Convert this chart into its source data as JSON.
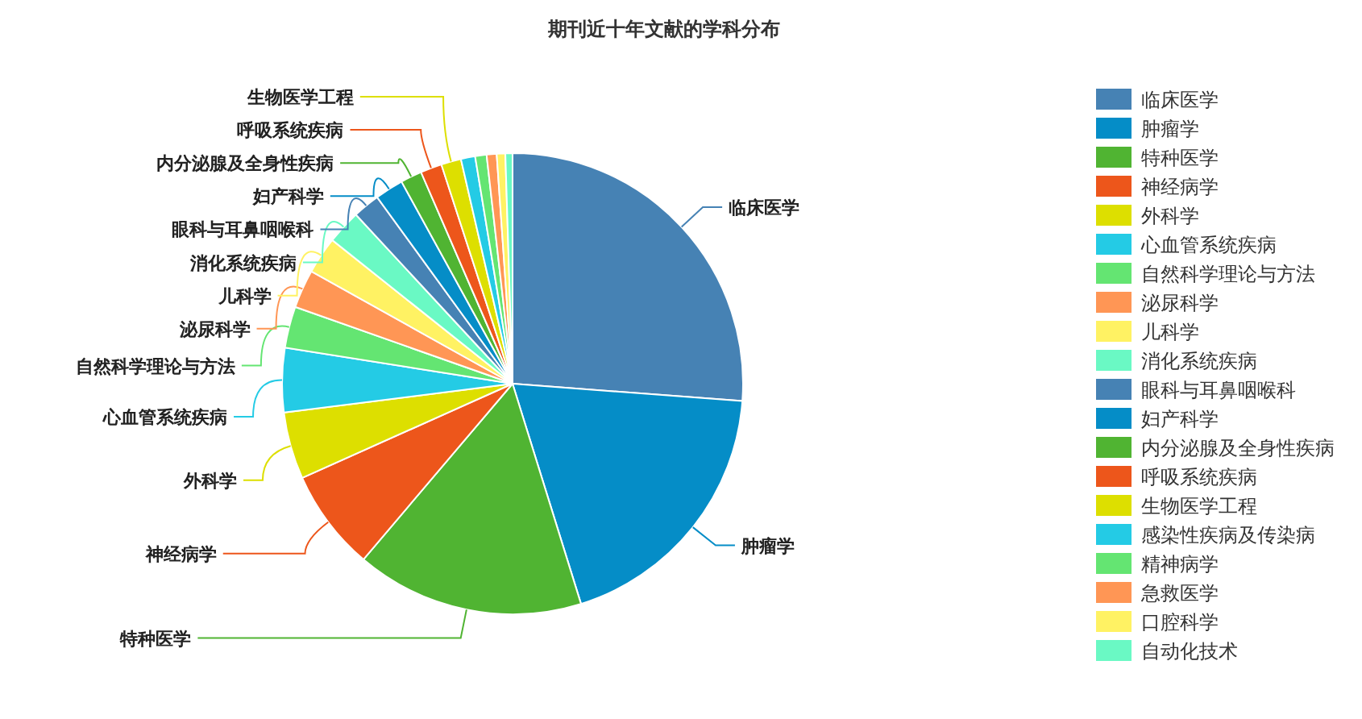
{
  "chart_data": {
    "type": "pie",
    "title": "期刊近十年文献的学科分布",
    "categories": [
      "临床医学",
      "肿瘤学",
      "特种医学",
      "神经病学",
      "外科学",
      "心血管系统疾病",
      "自然科学理论与方法",
      "泌尿科学",
      "儿科学",
      "消化系统疾病",
      "眼科与耳鼻咽喉科",
      "妇产科学",
      "内分泌腺及全身性疾病",
      "呼吸系统疾病",
      "生物医学工程",
      "感染性疾病及传染病",
      "精神病学",
      "急救医学",
      "口腔科学",
      "自动化技术"
    ],
    "values": [
      26.2,
      19,
      16,
      7.1,
      4.7,
      4.5,
      2.9,
      2.7,
      2.6,
      2.4,
      1.9,
      2.0,
      1.5,
      1.5,
      1.4,
      1.0,
      0.8,
      0.7,
      0.6,
      0.5
    ],
    "colors": [
      "#4682b4",
      "#058dc7",
      "#50b432",
      "#ed561b",
      "#dddf00",
      "#24cbe5",
      "#64e572",
      "#ff9655",
      "#fff263",
      "#6af9c4",
      "#4682b4",
      "#058dc7",
      "#50b432",
      "#ed561b",
      "#dddf00",
      "#24cbe5",
      "#64e572",
      "#ff9655",
      "#fff263",
      "#6af9c4"
    ],
    "legend": "right"
  }
}
